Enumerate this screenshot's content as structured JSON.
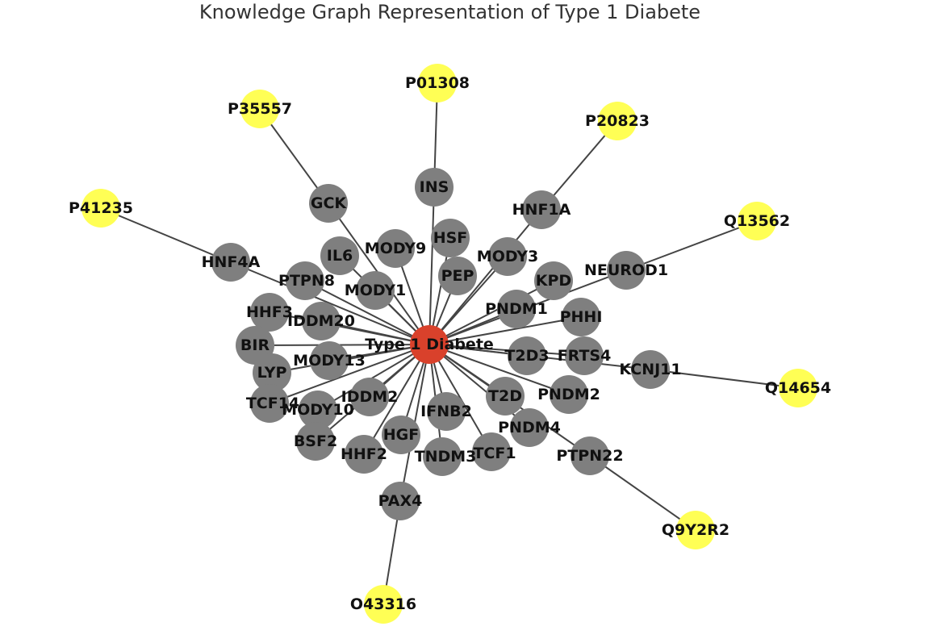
{
  "title": "Knowledge Graph Representation of Type 1 Diabete",
  "colors": {
    "center": "#d9412b",
    "gene": "#7f7f7f",
    "protein": "#ffff55",
    "edge": "#444444",
    "label": "#111111"
  },
  "nodes": [
    {
      "id": "Type 1 Diabete",
      "kind": "center"
    },
    {
      "id": "INS",
      "kind": "gene"
    },
    {
      "id": "GCK",
      "kind": "gene"
    },
    {
      "id": "HNF1A",
      "kind": "gene"
    },
    {
      "id": "HNF4A",
      "kind": "gene"
    },
    {
      "id": "NEUROD1",
      "kind": "gene"
    },
    {
      "id": "KCNJ11",
      "kind": "gene"
    },
    {
      "id": "PTPN22",
      "kind": "gene"
    },
    {
      "id": "PAX4",
      "kind": "gene"
    },
    {
      "id": "MODY9",
      "kind": "gene"
    },
    {
      "id": "HSF",
      "kind": "gene"
    },
    {
      "id": "IL6",
      "kind": "gene"
    },
    {
      "id": "MODY3",
      "kind": "gene"
    },
    {
      "id": "PTPN8",
      "kind": "gene"
    },
    {
      "id": "MODY1",
      "kind": "gene"
    },
    {
      "id": "PEP",
      "kind": "gene"
    },
    {
      "id": "KPD",
      "kind": "gene"
    },
    {
      "id": "HHF3",
      "kind": "gene"
    },
    {
      "id": "IDDM20",
      "kind": "gene"
    },
    {
      "id": "PNDM1",
      "kind": "gene"
    },
    {
      "id": "PHHI",
      "kind": "gene"
    },
    {
      "id": "BIR",
      "kind": "gene"
    },
    {
      "id": "MODY13",
      "kind": "gene"
    },
    {
      "id": "T2D3",
      "kind": "gene"
    },
    {
      "id": "FRTS4",
      "kind": "gene"
    },
    {
      "id": "LYP",
      "kind": "gene"
    },
    {
      "id": "TCF14",
      "kind": "gene"
    },
    {
      "id": "MODY10",
      "kind": "gene"
    },
    {
      "id": "IDDM2",
      "kind": "gene"
    },
    {
      "id": "IFNB2",
      "kind": "gene"
    },
    {
      "id": "T2D",
      "kind": "gene"
    },
    {
      "id": "PNDM2",
      "kind": "gene"
    },
    {
      "id": "BSF2",
      "kind": "gene"
    },
    {
      "id": "HGF",
      "kind": "gene"
    },
    {
      "id": "PNDM4",
      "kind": "gene"
    },
    {
      "id": "HHF2",
      "kind": "gene"
    },
    {
      "id": "TNDM3",
      "kind": "gene"
    },
    {
      "id": "TCF1",
      "kind": "gene"
    },
    {
      "id": "P01308",
      "kind": "protein"
    },
    {
      "id": "P35557",
      "kind": "protein"
    },
    {
      "id": "P20823",
      "kind": "protein"
    },
    {
      "id": "P41235",
      "kind": "protein"
    },
    {
      "id": "Q13562",
      "kind": "protein"
    },
    {
      "id": "Q14654",
      "kind": "protein"
    },
    {
      "id": "Q9Y2R2",
      "kind": "protein"
    },
    {
      "id": "O43316",
      "kind": "protein"
    }
  ],
  "edges": [
    [
      "Type 1 Diabete",
      "INS"
    ],
    [
      "Type 1 Diabete",
      "GCK"
    ],
    [
      "Type 1 Diabete",
      "HNF1A"
    ],
    [
      "Type 1 Diabete",
      "HNF4A"
    ],
    [
      "Type 1 Diabete",
      "NEUROD1"
    ],
    [
      "Type 1 Diabete",
      "KCNJ11"
    ],
    [
      "Type 1 Diabete",
      "PTPN22"
    ],
    [
      "Type 1 Diabete",
      "PAX4"
    ],
    [
      "Type 1 Diabete",
      "MODY9"
    ],
    [
      "Type 1 Diabete",
      "HSF"
    ],
    [
      "Type 1 Diabete",
      "IL6"
    ],
    [
      "Type 1 Diabete",
      "MODY3"
    ],
    [
      "Type 1 Diabete",
      "PTPN8"
    ],
    [
      "Type 1 Diabete",
      "MODY1"
    ],
    [
      "Type 1 Diabete",
      "PEP"
    ],
    [
      "Type 1 Diabete",
      "KPD"
    ],
    [
      "Type 1 Diabete",
      "HHF3"
    ],
    [
      "Type 1 Diabete",
      "IDDM20"
    ],
    [
      "Type 1 Diabete",
      "PNDM1"
    ],
    [
      "Type 1 Diabete",
      "PHHI"
    ],
    [
      "Type 1 Diabete",
      "BIR"
    ],
    [
      "Type 1 Diabete",
      "MODY13"
    ],
    [
      "Type 1 Diabete",
      "T2D3"
    ],
    [
      "Type 1 Diabete",
      "FRTS4"
    ],
    [
      "Type 1 Diabete",
      "LYP"
    ],
    [
      "Type 1 Diabete",
      "TCF14"
    ],
    [
      "Type 1 Diabete",
      "MODY10"
    ],
    [
      "Type 1 Diabete",
      "IDDM2"
    ],
    [
      "Type 1 Diabete",
      "IFNB2"
    ],
    [
      "Type 1 Diabete",
      "T2D"
    ],
    [
      "Type 1 Diabete",
      "PNDM2"
    ],
    [
      "Type 1 Diabete",
      "BSF2"
    ],
    [
      "Type 1 Diabete",
      "HGF"
    ],
    [
      "Type 1 Diabete",
      "PNDM4"
    ],
    [
      "Type 1 Diabete",
      "HHF2"
    ],
    [
      "Type 1 Diabete",
      "TNDM3"
    ],
    [
      "Type 1 Diabete",
      "TCF1"
    ],
    [
      "INS",
      "P01308"
    ],
    [
      "GCK",
      "P35557"
    ],
    [
      "HNF1A",
      "P20823"
    ],
    [
      "HNF4A",
      "P41235"
    ],
    [
      "NEUROD1",
      "Q13562"
    ],
    [
      "KCNJ11",
      "Q14654"
    ],
    [
      "PTPN22",
      "Q9Y2R2"
    ],
    [
      "PAX4",
      "O43316"
    ]
  ]
}
